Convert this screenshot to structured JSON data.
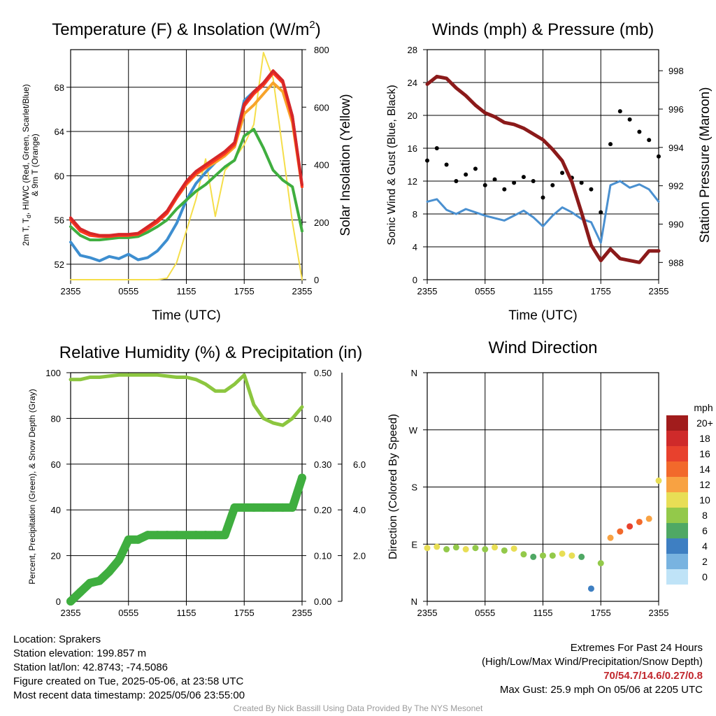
{
  "chart_data": [
    {
      "type": "line",
      "title": "Temperature (F) & Insolation (W/m",
      "title_sup": "2",
      "title_end": ")",
      "xlabel": "Time (UTC)",
      "ylabel_lines": [
        "2m T, T",
        "d",
        ", HI/WC (Red, Green, Scarlet/Blue)",
        "& 9m T (Orange)"
      ],
      "ylabel2": "Solar Insolation (Yellow)",
      "x_ticks": [
        "2355",
        "0555",
        "1155",
        "1755",
        "2355"
      ],
      "y_ticks": [
        52,
        56,
        60,
        64,
        68
      ],
      "ylim": [
        50.6,
        71.4
      ],
      "y2_ticks": [
        0,
        200,
        400,
        600,
        800
      ],
      "y2lim": [
        0,
        800
      ],
      "grid": true,
      "series": [
        {
          "name": "2m T",
          "color": "#d62728",
          "axis": "left",
          "x": [
            0,
            1,
            2,
            3,
            4,
            5,
            6,
            7,
            8,
            9,
            10,
            11,
            12,
            13,
            14,
            15,
            16,
            17,
            18,
            19,
            20,
            21,
            22,
            23,
            24
          ],
          "y": [
            56.2,
            55.2,
            54.8,
            54.6,
            54.6,
            54.7,
            54.7,
            54.8,
            55.4,
            56.0,
            56.8,
            58.2,
            59.5,
            60.4,
            61.0,
            61.6,
            62.2,
            63.0,
            66.5,
            67.6,
            68.4,
            69.5,
            68.6,
            65.4,
            59.2
          ]
        },
        {
          "name": "HI/WC",
          "color": "#ff3a1f",
          "axis": "left",
          "x": [
            0,
            1,
            2,
            3,
            4,
            5,
            6,
            7,
            8,
            9,
            10,
            11,
            12,
            13,
            14,
            15,
            16,
            17,
            18,
            19,
            20,
            21,
            22,
            23,
            24
          ],
          "y": [
            56.0,
            55.0,
            54.6,
            54.5,
            54.5,
            54.6,
            54.6,
            54.7,
            55.2,
            55.8,
            56.6,
            58.0,
            59.3,
            60.2,
            60.8,
            61.4,
            62.0,
            62.8,
            66.3,
            67.4,
            68.2,
            69.3,
            68.4,
            65.2,
            59.0
          ]
        },
        {
          "name": "9m T",
          "color": "#f7a32a",
          "axis": "left",
          "x": [
            0,
            1,
            2,
            3,
            4,
            5,
            6,
            7,
            8,
            9,
            10,
            11,
            12,
            13,
            14,
            15,
            16,
            17,
            18,
            19,
            20,
            21,
            22,
            23,
            24
          ],
          "y": [
            56.1,
            55.1,
            54.7,
            54.6,
            54.6,
            54.6,
            54.6,
            54.7,
            55.3,
            55.9,
            56.6,
            58.0,
            59.2,
            60.1,
            60.7,
            61.2,
            61.8,
            62.6,
            65.6,
            66.4,
            67.4,
            68.4,
            67.6,
            64.8,
            59.0
          ]
        },
        {
          "name": "Td",
          "color": "#3fae3f",
          "axis": "left",
          "x": [
            0,
            1,
            2,
            3,
            4,
            5,
            6,
            7,
            8,
            9,
            10,
            11,
            12,
            13,
            14,
            15,
            16,
            17,
            18,
            19,
            20,
            21,
            22,
            23,
            24
          ],
          "y": [
            55.4,
            54.6,
            54.2,
            54.2,
            54.3,
            54.4,
            54.4,
            54.5,
            54.9,
            55.4,
            56.0,
            57.0,
            57.8,
            58.6,
            59.2,
            60.0,
            60.8,
            61.4,
            63.6,
            64.2,
            62.5,
            60.5,
            59.6,
            59.0,
            55.0
          ]
        },
        {
          "name": "2m T / WC",
          "color": "#3d8ed0",
          "axis": "left",
          "x": [
            0,
            1,
            2,
            3,
            4,
            5,
            6,
            7,
            8,
            9,
            10,
            11,
            12,
            13,
            14,
            15,
            16,
            17,
            18,
            19,
            20,
            21,
            22,
            23,
            24
          ],
          "y": [
            54.0,
            52.8,
            52.6,
            52.3,
            52.7,
            52.5,
            52.9,
            52.4,
            52.6,
            53.2,
            54.2,
            55.7,
            57.8,
            59.3,
            60.3,
            61.2,
            62.0,
            63.0,
            66.8,
            67.6,
            68.2,
            69.3,
            68.5,
            65.4,
            59.0
          ]
        },
        {
          "name": "Solar Insolation",
          "color": "#f5de4a",
          "axis": "right",
          "x": [
            0,
            1,
            2,
            3,
            4,
            5,
            6,
            7,
            8,
            9,
            10,
            11,
            12,
            13,
            14,
            15,
            16,
            17,
            18,
            19,
            20,
            21,
            22,
            23,
            24
          ],
          "y": [
            0,
            0,
            0,
            0,
            0,
            0,
            0,
            0,
            0,
            0,
            5,
            60,
            170,
            280,
            420,
            220,
            380,
            420,
            470,
            540,
            790,
            700,
            450,
            200,
            0
          ]
        }
      ]
    },
    {
      "type": "line",
      "title": "Winds (mph) & Pressure (mb)",
      "xlabel": "Time (UTC)",
      "ylabel": "Sonic Wind & Gust (Blue, Black)",
      "ylabel2": "Station Pressure (Maroon)",
      "x_ticks": [
        "2355",
        "0555",
        "1155",
        "1755",
        "2355"
      ],
      "y_ticks": [
        0,
        4,
        8,
        12,
        16,
        20,
        24,
        28
      ],
      "ylim": [
        0,
        28
      ],
      "y2_ticks": [
        988,
        990,
        992,
        994,
        996,
        998
      ],
      "y2lim": [
        987.1,
        999.1
      ],
      "grid": true,
      "series": [
        {
          "name": "Sonic Wind",
          "color": "#4a90d0",
          "style": "line",
          "x": [
            0,
            1,
            2,
            3,
            4,
            5,
            6,
            7,
            8,
            9,
            10,
            11,
            12,
            13,
            14,
            15,
            16,
            17,
            18,
            19,
            20,
            21,
            22,
            23,
            24
          ],
          "y": [
            9.5,
            9.8,
            8.5,
            8.0,
            8.6,
            8.2,
            7.8,
            7.5,
            7.2,
            7.8,
            8.4,
            7.6,
            6.5,
            7.8,
            8.8,
            8.2,
            7.4,
            7.0,
            4.5,
            11.5,
            12.0,
            11.2,
            11.6,
            11.0,
            9.5
          ]
        },
        {
          "name": "Gust",
          "color": "#000000",
          "style": "dots",
          "x": [
            0,
            1,
            2,
            3,
            4,
            5,
            6,
            7,
            8,
            9,
            10,
            11,
            12,
            13,
            14,
            15,
            16,
            17,
            18,
            19,
            20,
            21,
            22,
            23,
            24
          ],
          "y": [
            14.5,
            16.0,
            14.0,
            12.0,
            12.8,
            13.5,
            11.5,
            12.2,
            11.0,
            11.8,
            12.5,
            12.0,
            10.0,
            11.5,
            13.0,
            12.4,
            11.8,
            11.0,
            8.2,
            16.5,
            20.5,
            19.5,
            18.0,
            17.0,
            15.0
          ]
        },
        {
          "name": "Station Pressure",
          "color": "#8b1a1a",
          "style": "line",
          "axis": "right",
          "x": [
            0,
            1,
            2,
            3,
            4,
            5,
            6,
            7,
            8,
            9,
            10,
            11,
            12,
            13,
            14,
            15,
            16,
            17,
            18,
            19,
            20,
            21,
            22,
            23,
            24
          ],
          "y": [
            997.3,
            997.7,
            997.6,
            997.1,
            996.7,
            996.2,
            995.8,
            995.6,
            995.3,
            995.2,
            995.0,
            994.7,
            994.4,
            993.9,
            993.3,
            992.2,
            990.6,
            988.9,
            988.1,
            988.7,
            988.2,
            988.1,
            988.0,
            988.6,
            988.6
          ]
        }
      ]
    },
    {
      "type": "line",
      "title": "Relative Humidity (%) & Precipitation (in)",
      "ylabel": "Percent, Precipitation (Green), & Snow Depth (Gray)",
      "x_ticks": [
        "2355",
        "0555",
        "1155",
        "1755",
        "2355"
      ],
      "y_ticks": [
        0,
        20,
        40,
        60,
        80,
        100
      ],
      "ylim": [
        0,
        100
      ],
      "y2_ticks": [
        "0.00",
        "0.10",
        "0.20",
        "0.30",
        "0.40",
        "0.50"
      ],
      "y2lim": [
        0,
        0.5
      ],
      "y3_ticks": [
        "2.0",
        "4.0",
        "6.0"
      ],
      "grid": true,
      "series": [
        {
          "name": "Relative Humidity",
          "color": "#8cc63f",
          "axis": "left",
          "x": [
            0,
            1,
            2,
            3,
            4,
            5,
            6,
            7,
            8,
            9,
            10,
            11,
            12,
            13,
            14,
            15,
            16,
            17,
            18,
            19,
            20,
            21,
            22,
            23,
            24
          ],
          "y": [
            97,
            97,
            98,
            98,
            98.5,
            99,
            99,
            99,
            99,
            99,
            98.5,
            98,
            98,
            97,
            95,
            92,
            92,
            95,
            99,
            86,
            80,
            78,
            77,
            80,
            85
          ]
        },
        {
          "name": "Precipitation",
          "color": "#3fae3f",
          "axis": "right",
          "x": [
            0,
            1,
            2,
            3,
            4,
            5,
            6,
            7,
            8,
            9,
            10,
            11,
            12,
            13,
            14,
            15,
            16,
            17,
            18,
            19,
            20,
            21,
            22,
            23,
            24
          ],
          "y": [
            0,
            0.02,
            0.04,
            0.045,
            0.065,
            0.09,
            0.135,
            0.135,
            0.145,
            0.145,
            0.145,
            0.145,
            0.145,
            0.145,
            0.145,
            0.145,
            0.145,
            0.205,
            0.205,
            0.205,
            0.205,
            0.205,
            0.205,
            0.205,
            0.27
          ]
        }
      ]
    },
    {
      "type": "scatter",
      "title": "Wind Direction",
      "ylabel": "Direction (Colored By Speed)",
      "x_ticks": [
        "2355",
        "0555",
        "1155",
        "1755",
        "2355"
      ],
      "y_ticks": [
        "N",
        "E",
        "S",
        "W",
        "N"
      ],
      "ylim": [
        0,
        360
      ],
      "grid": true,
      "legend_title": "mph",
      "legend_labels": [
        "20+",
        "18",
        "16",
        "14",
        "12",
        "10",
        "8",
        "6",
        "4",
        "2",
        "0"
      ],
      "legend_colors": [
        "#a11c1c",
        "#cf2a2a",
        "#e8412d",
        "#f2692b",
        "#f8a242",
        "#e8de55",
        "#93c94a",
        "#4fa864",
        "#3e7fc2",
        "#78b3e0",
        "#bfe3f7"
      ],
      "x": [
        0,
        1,
        2,
        3,
        4,
        5,
        6,
        7,
        8,
        9,
        10,
        11,
        12,
        13,
        14,
        15,
        16,
        17,
        18,
        19,
        20,
        21,
        22,
        23,
        24
      ],
      "y": [
        84,
        86,
        82,
        85,
        82,
        84,
        82,
        85,
        80,
        83,
        74,
        70,
        72,
        72,
        75,
        72,
        70,
        20,
        60,
        100,
        110,
        118,
        125,
        130,
        190
      ],
      "speed": [
        10,
        9,
        8,
        7,
        9,
        8,
        7,
        9,
        8,
        10,
        8,
        6,
        7,
        8,
        9,
        10,
        6,
        4,
        8,
        12,
        14,
        16,
        14,
        12,
        10
      ]
    }
  ],
  "info": {
    "location": "Location: Sprakers",
    "elevation": "Station elevation: 199.857 m",
    "latlon": "Station lat/lon: 42.8743; -74.5086",
    "created": "Figure created on Tue, 2025-05-06, at 23:58 UTC",
    "recent": "Most recent data timestamp: 2025/05/06 23:55:00"
  },
  "extremes": {
    "title": "Extremes For Past 24 Hours",
    "subtitle": "(High/Low/Max Wind/Precipitation/Snow Depth)",
    "values": "70/54.7/14.6/0.27/0.8",
    "gust": "Max Gust: 25.9 mph On 05/06 at 2205 UTC"
  },
  "credit": "Created By Nick Bassill Using Data Provided By The NYS Mesonet"
}
